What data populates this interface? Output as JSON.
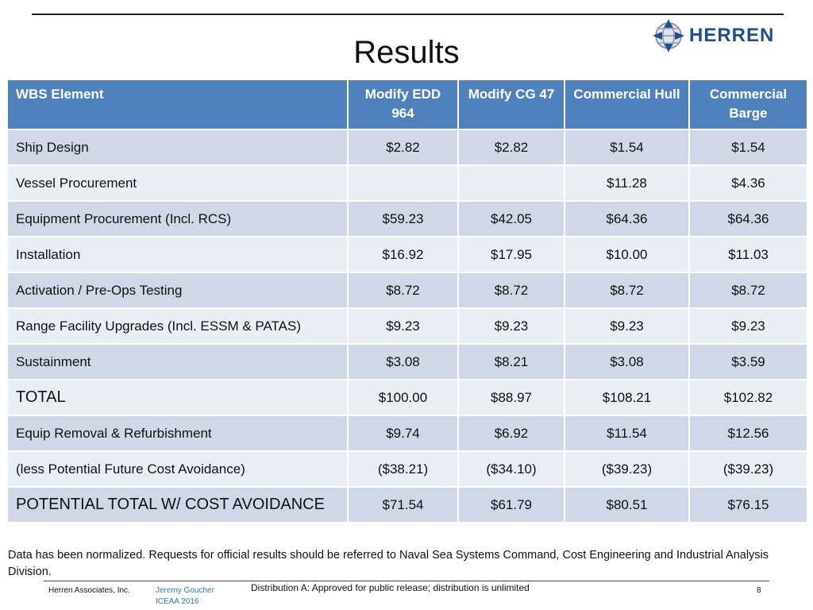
{
  "title": "Results",
  "logo": {
    "text": "HERREN",
    "icon": "globe-icon",
    "color": "#1e4f93"
  },
  "table": {
    "headers": [
      "WBS Element",
      "Modify EDD 964",
      "Modify CG 47",
      "Commercial Hull",
      "Commercial Barge"
    ],
    "rows": [
      [
        "Ship Design",
        "$2.82",
        "$2.82",
        "$1.54",
        "$1.54"
      ],
      [
        "Vessel Procurement",
        "",
        "",
        "$11.28",
        "$4.36"
      ],
      [
        "Equipment Procurement (Incl. RCS)",
        "$59.23",
        "$42.05",
        "$64.36",
        "$64.36"
      ],
      [
        "Installation",
        "$16.92",
        "$17.95",
        "$10.00",
        "$11.03"
      ],
      [
        "Activation / Pre-Ops Testing",
        "$8.72",
        "$8.72",
        "$8.72",
        "$8.72"
      ],
      [
        "Range Facility Upgrades (Incl. ESSM & PATAS)",
        "$9.23",
        "$9.23",
        "$9.23",
        "$9.23"
      ],
      [
        "Sustainment",
        "$3.08",
        "$8.21",
        "$3.08",
        "$3.59"
      ],
      [
        "TOTAL",
        "$100.00",
        "$88.97",
        "$108.21",
        "$102.82"
      ],
      [
        "Equip Removal & Refurbishment",
        "$9.74",
        "$6.92",
        "$11.54",
        "$12.56"
      ],
      [
        "(less Potential Future Cost Avoidance)",
        "($38.21)",
        "($34.10)",
        "($39.23)",
        "($39.23)"
      ],
      [
        "POTENTIAL TOTAL W/ COST AVOIDANCE",
        "$71.54",
        "$61.79",
        "$80.51",
        "$76.15"
      ]
    ],
    "header_color": "#4f81bd",
    "row_colors": [
      "#d0d8e8",
      "#e9edf4"
    ]
  },
  "footnote": "Data has been normalized. Requests for official results should be referred to Naval Sea Systems Command, Cost Engineering and Industrial Analysis Division.",
  "footer": {
    "company": "Herren Associates, Inc.",
    "author": "Jeremy Goucher",
    "event": "ICEAA 2016",
    "distribution": "Distribution A:  Approved for public release; distribution is unlimited",
    "page": "8"
  }
}
